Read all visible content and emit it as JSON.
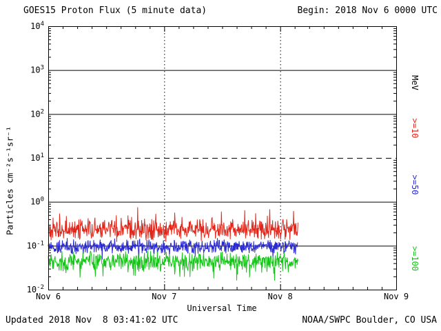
{
  "header": {
    "begin": "Begin: 2018 Nov 6 0000 UTC"
  },
  "footer": {
    "updated": "Updated 2018 Nov  8 03:41:02 UTC",
    "source": "NOAA/SWPC Boulder, CO USA"
  },
  "chart_data": {
    "type": "line",
    "title": "GOES15 Proton Flux (5 minute data)",
    "xlabel": "Universal Time",
    "ylabel": "Particles cm⁻²s⁻¹sr⁻¹",
    "x_tick_labels": [
      "Nov 6",
      "Nov 7",
      "Nov 8",
      "Nov 9"
    ],
    "x_tick_days": [
      0,
      1,
      2,
      3
    ],
    "y_tick_exponents": [
      4,
      3,
      2,
      1,
      0,
      -1,
      -2
    ],
    "ylim_log10": [
      -2,
      4
    ],
    "xlim_days": [
      0,
      3
    ],
    "x_minor_tick_hours": 3,
    "grid": {
      "solid_hlines_log10": [
        3,
        2,
        0,
        -1
      ],
      "dashed_hlines_log10": [
        1
      ],
      "dotted_vlines_days": [
        1,
        2
      ]
    },
    "right_axis_labels": [
      {
        "text": "MeV",
        "color": "#000000",
        "center_log10": 2.71
      },
      {
        "text": ">=10",
        "color": "#e3261a",
        "center_log10": 1.68
      },
      {
        "text": ">=50",
        "color": "#2a2ad0",
        "center_log10": 0.39
      },
      {
        "text": ">=100",
        "color": "#17c41a",
        "center_log10": -1.3
      }
    ],
    "series": [
      {
        "name": ">=10 MeV",
        "color": "#e3261a",
        "cadence_minutes": 5,
        "start_day": 0,
        "end_day": 2.153,
        "mean_log10": -0.64,
        "sd_log10": 0.14,
        "spike_prob": 0.12,
        "spike_mag_log10": 0.33,
        "spike_direction": 1,
        "seed": 101,
        "approx_flux_range": [
          0.12,
          0.55
        ]
      },
      {
        "name": ">=50 MeV",
        "color": "#2a2ad0",
        "cadence_minutes": 5,
        "start_day": 0,
        "end_day": 2.153,
        "mean_log10": -1.02,
        "sd_log10": 0.1,
        "spike_prob": 0.05,
        "spike_mag_log10": 0.22,
        "spike_direction": -1,
        "seed": 202,
        "approx_flux_range": [
          0.06,
          0.16
        ]
      },
      {
        "name": ">=100 MeV",
        "color": "#17c41a",
        "cadence_minutes": 5,
        "start_day": 0,
        "end_day": 2.153,
        "mean_log10": -1.35,
        "sd_log10": 0.13,
        "spike_prob": 0.1,
        "spike_mag_log10": 0.33,
        "spike_direction": -1,
        "seed": 303,
        "approx_flux_range": [
          0.02,
          0.09
        ]
      }
    ]
  }
}
